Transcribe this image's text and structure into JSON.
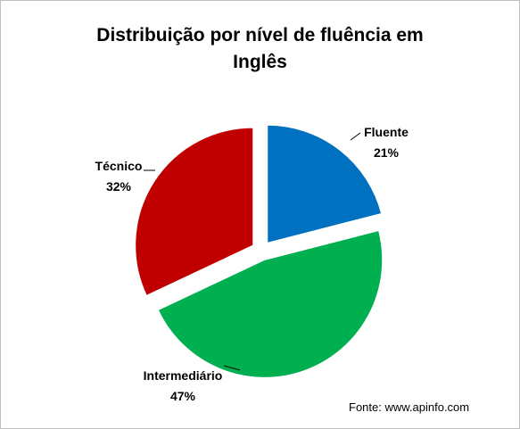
{
  "chart_data": {
    "type": "pie",
    "title_lines": [
      "Distribuição por nível de fluência em",
      "Inglês"
    ],
    "slices": [
      {
        "label": "Fluente",
        "value": 21,
        "value_label": "21%",
        "color": "#0070c0"
      },
      {
        "label": "Intermediário",
        "value": 47,
        "value_label": "47%",
        "color": "#00b050"
      },
      {
        "label": "Técnico",
        "value": 32,
        "value_label": "32%",
        "color": "#c00000"
      }
    ],
    "exploded": true,
    "start": "12 o'clock, clockwise",
    "legend": "none (data labels)"
  },
  "source_note": "Fonte: www.apinfo.com"
}
